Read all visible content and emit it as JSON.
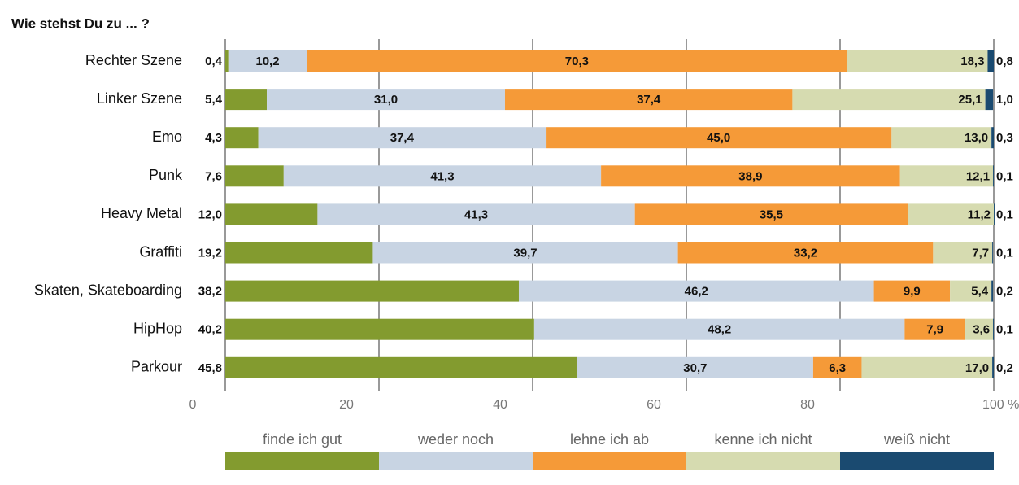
{
  "chart_data": {
    "type": "stacked-bar-horizontal",
    "title": "Wie stehst Du zu ... ?",
    "categories": [
      "Rechter Szene",
      "Linker Szene",
      "Emo",
      "Punk",
      "Heavy Metal",
      "Graffiti",
      "Skaten, Skateboarding",
      "HipHop",
      "Parkour"
    ],
    "series": [
      {
        "name": "finde ich gut",
        "color": "#839b2f",
        "values": [
          0.4,
          5.4,
          4.3,
          7.6,
          12.0,
          19.2,
          38.2,
          40.2,
          45.8
        ],
        "value_labels": [
          "0,4",
          "5,4",
          "4,3",
          "7,6",
          "12,0",
          "19,2",
          "38,2",
          "40,2",
          "45,8"
        ]
      },
      {
        "name": "weder noch",
        "color": "#c8d4e3",
        "values": [
          10.2,
          31.0,
          37.4,
          41.3,
          41.3,
          39.7,
          46.2,
          48.2,
          30.7
        ],
        "value_labels": [
          "10,2",
          "31,0",
          "37,4",
          "41,3",
          "41,3",
          "39,7",
          "46,2",
          "48,2",
          "30,7"
        ]
      },
      {
        "name": "lehne ich ab",
        "color": "#f59a38",
        "values": [
          70.3,
          37.4,
          45.0,
          38.9,
          35.5,
          33.2,
          9.9,
          7.9,
          6.3
        ],
        "value_labels": [
          "70,3",
          "37,4",
          "45,0",
          "38,9",
          "35,5",
          "33,2",
          "9,9",
          "7,9",
          "6,3"
        ]
      },
      {
        "name": "kenne ich nicht",
        "color": "#d6dbb0",
        "values": [
          18.3,
          25.1,
          13.0,
          12.1,
          11.2,
          7.7,
          5.4,
          3.6,
          17.0
        ],
        "value_labels": [
          "18,3",
          "25,1",
          "13,0",
          "12,1",
          "11,2",
          "7,7",
          "5,4",
          "3,6",
          "17,0"
        ]
      },
      {
        "name": "weiß nicht",
        "color": "#1a4a70",
        "values": [
          0.8,
          1.0,
          0.3,
          0.1,
          0.1,
          0.1,
          0.2,
          0.1,
          0.2
        ],
        "value_labels": [
          "0,8",
          "1,0",
          "0,3",
          "0,1",
          "0,1",
          "0,1",
          "0,2",
          "0,1",
          "0,2"
        ]
      }
    ],
    "xlim": [
      0,
      100
    ],
    "xticks": [
      0,
      20,
      40,
      60,
      80,
      {
        "value": 100,
        "label": "100 %"
      }
    ],
    "grid": true
  }
}
